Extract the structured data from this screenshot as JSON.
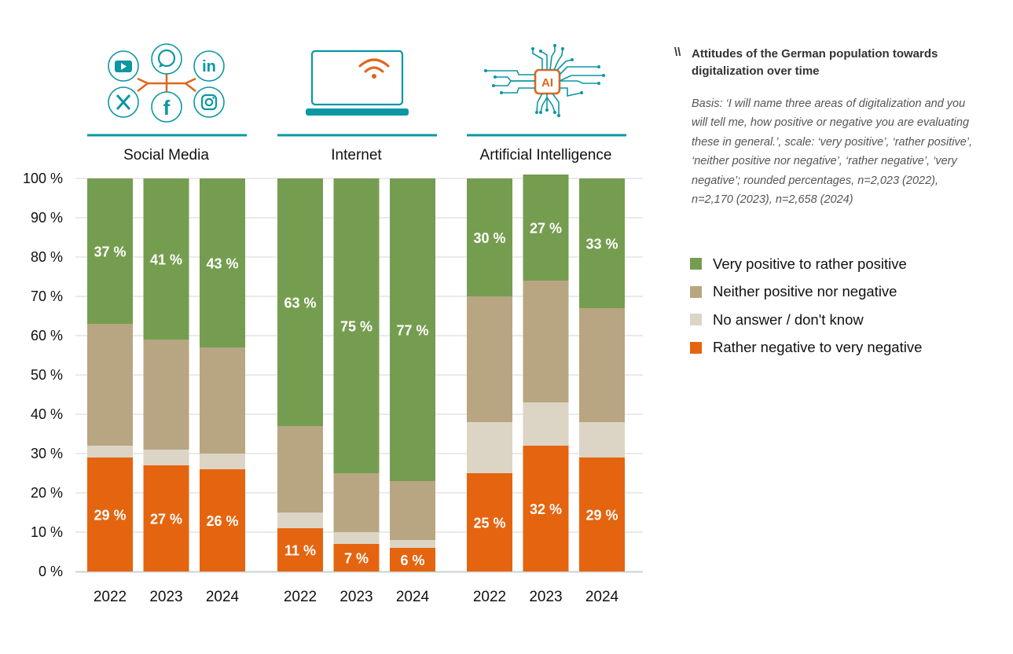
{
  "side": {
    "marker": "\\\\",
    "title": "Attitudes of the German population towards digitalization over time",
    "basis": "Basis: ‘I will name three areas of digitalization and you will tell me, how positive or negative you are evaluating these in general.’, scale: ‘very positive’, ‘rather positive’, ‘neither positive nor negative’, ‘rather negative’, ‘very negative’; rounded percentages, n=2,023 (2022), n=2,170 (2023), n=2,658 (2024)"
  },
  "colors": {
    "positive": "#759d50",
    "neutral": "#b8a682",
    "no_answer": "#dcd5c5",
    "negative": "#e5640f",
    "teal": "#0c97a3",
    "icon_orange": "#e0661c",
    "grid": "#e3e3e3",
    "axis": "#c9d2d6"
  },
  "chart_data": {
    "type": "bar",
    "stacked": true,
    "ylim": [
      0,
      100
    ],
    "yticks": [
      "0 %",
      "10 %",
      "20 %",
      "30 %",
      "40 %",
      "50 %",
      "60 %",
      "70 %",
      "80 %",
      "90 %",
      "100 %"
    ],
    "grid": true,
    "legend_position": "right",
    "legend": [
      {
        "key": "negative",
        "label": "Rather negative to very negative"
      },
      {
        "key": "no_answer",
        "label": "No answer / don't know"
      },
      {
        "key": "neutral",
        "label": "Neither positive nor negative"
      },
      {
        "key": "positive",
        "label": "Very positive to rather positive"
      }
    ],
    "groups": [
      {
        "name": "Social Media",
        "icon": "social-media-icon",
        "categories": [
          "2022",
          "2023",
          "2024"
        ],
        "series": {
          "negative": [
            29,
            27,
            26
          ],
          "no_answer": [
            3,
            4,
            4
          ],
          "neutral": [
            31,
            28,
            27
          ],
          "positive": [
            37,
            41,
            43
          ]
        }
      },
      {
        "name": "Internet",
        "icon": "laptop-wifi-icon",
        "categories": [
          "2022",
          "2023",
          "2024"
        ],
        "series": {
          "negative": [
            11,
            7,
            6
          ],
          "no_answer": [
            4,
            3,
            2
          ],
          "neutral": [
            22,
            15,
            15
          ],
          "positive": [
            63,
            75,
            77
          ]
        }
      },
      {
        "name": "Artificial Intelligence",
        "icon": "ai-chip-icon",
        "categories": [
          "2022",
          "2023",
          "2024"
        ],
        "series": {
          "negative": [
            25,
            32,
            29
          ],
          "no_answer": [
            13,
            11,
            9
          ],
          "neutral": [
            32,
            31,
            29
          ],
          "positive": [
            30,
            27,
            33
          ]
        }
      }
    ],
    "labeled_series": [
      "positive",
      "negative"
    ],
    "label_suffix": " %"
  }
}
